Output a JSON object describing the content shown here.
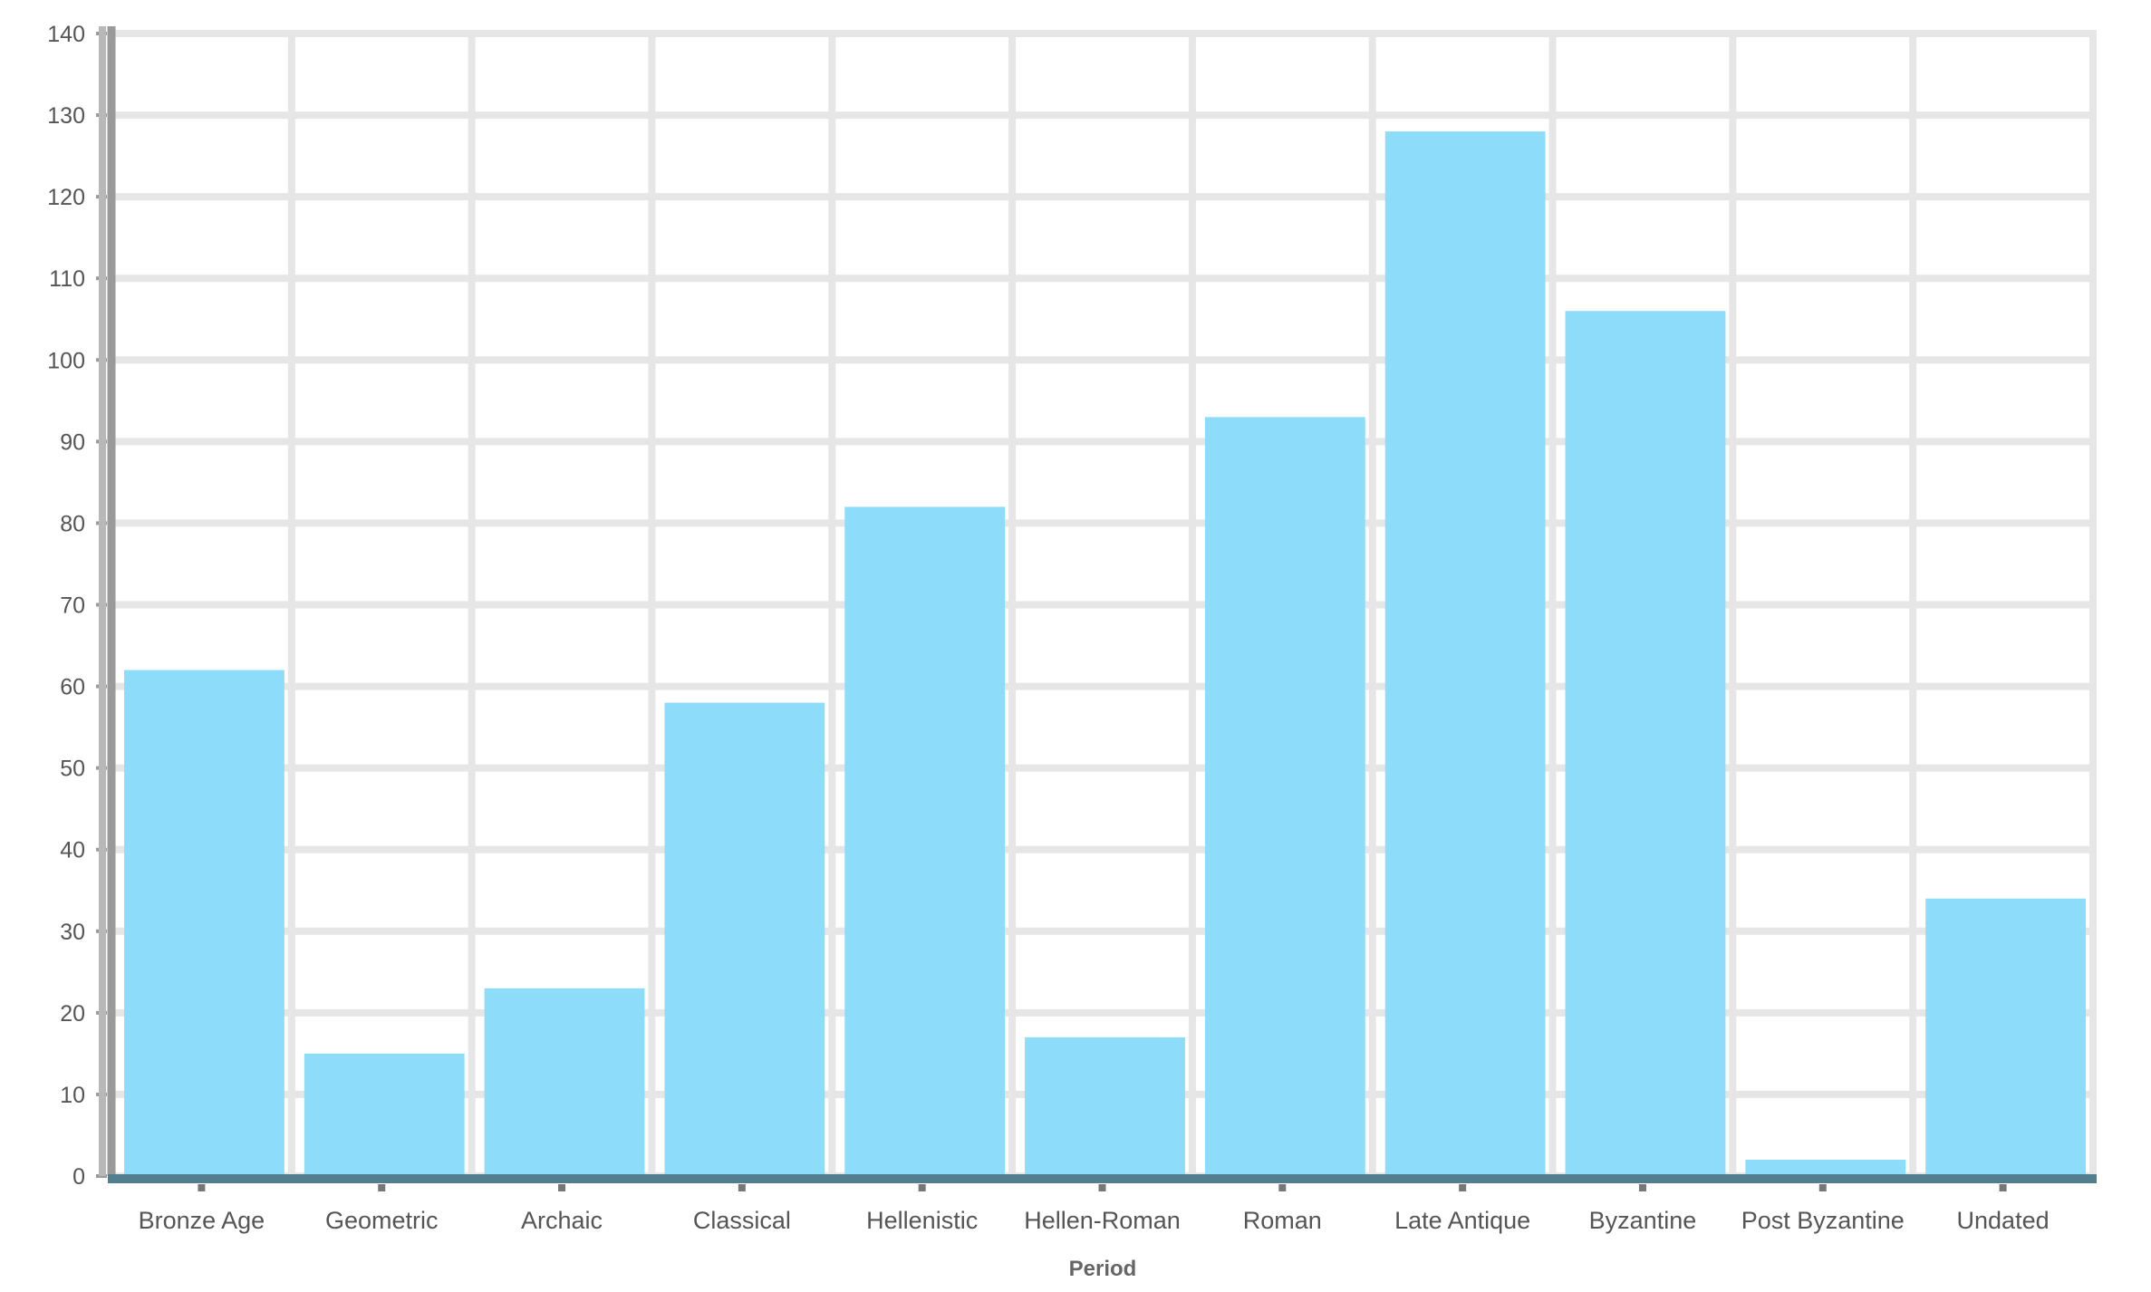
{
  "chart_data": {
    "type": "bar",
    "title": "",
    "xlabel": "Period",
    "ylabel": "",
    "categories": [
      "Bronze Age",
      "Geometric",
      "Archaic",
      "Classical",
      "Hellenistic",
      "Hellen-Roman",
      "Roman",
      "Late Antique",
      "Byzantine",
      "Post Byzantine",
      "Undated"
    ],
    "values": [
      62,
      15,
      23,
      58,
      82,
      17,
      93,
      128,
      106,
      2,
      34
    ],
    "ylim": [
      0,
      140
    ],
    "yticks": [
      "0",
      "10",
      "20",
      "30",
      "40",
      "50",
      "60",
      "70",
      "80",
      "90",
      "100",
      "110",
      "120",
      "130",
      "140"
    ],
    "grid": true,
    "legend": "none",
    "colors": {
      "bar": "#8cdcfa",
      "grid": "#e6e6e6",
      "axis": "#9a9a9a",
      "baseline": "#527f8f"
    }
  }
}
